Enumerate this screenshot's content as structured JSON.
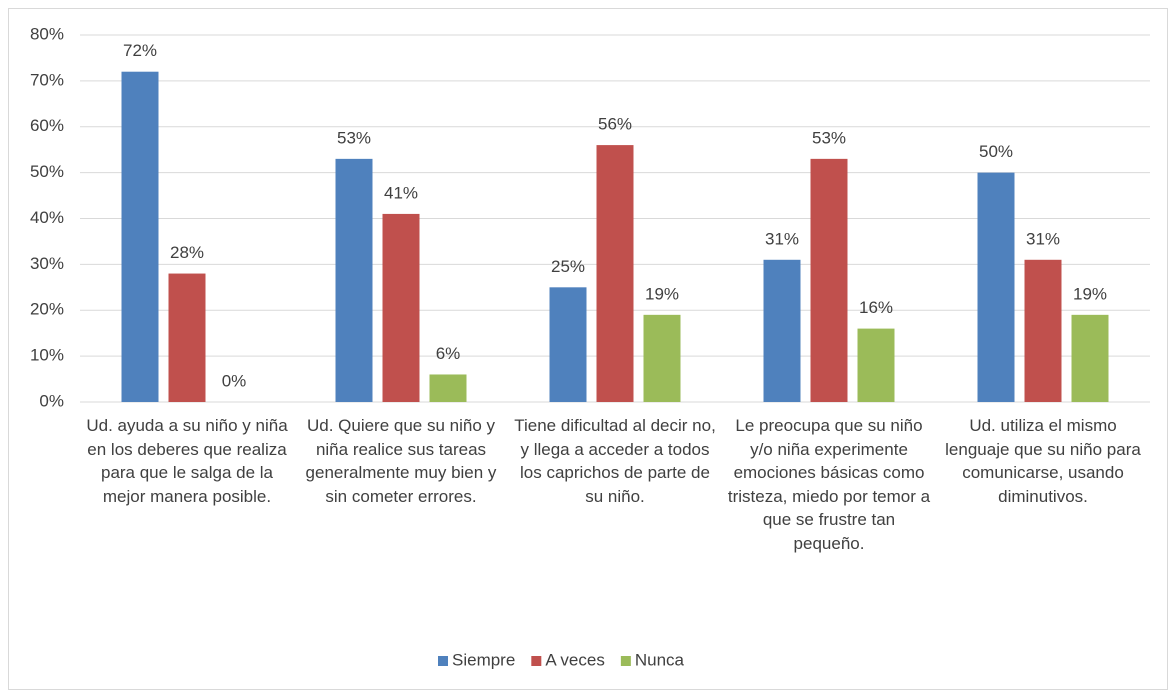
{
  "chart_data": {
    "type": "bar",
    "categories": [
      "Ud. ayuda a su niño y niña en los deberes que realiza para que le salga de la mejor manera posible.",
      "Ud. Quiere que su niño y niña realice sus tareas generalmente muy bien y sin cometer errores.",
      "Tiene dificultad al decir no, y llega a acceder a todos los caprichos de parte de su niño.",
      "Le preocupa que su niño y/o niña experimente emociones básicas como tristeza, miedo por temor a que se frustre tan pequeño.",
      "Ud. utiliza el mismo lenguaje que su niño para comunicarse, usando diminutivos."
    ],
    "series": [
      {
        "name": "Siempre",
        "color": "#4f81bd",
        "values": [
          72,
          53,
          25,
          31,
          50
        ],
        "value_labels": [
          "72%",
          "53%",
          "25%",
          "31%",
          "50%"
        ]
      },
      {
        "name": "A veces",
        "color": "#c0504d",
        "values": [
          28,
          41,
          56,
          53,
          31
        ],
        "value_labels": [
          "28%",
          "41%",
          "56%",
          "53%",
          "31%"
        ]
      },
      {
        "name": "Nunca",
        "color": "#9bbb59",
        "values": [
          0,
          6,
          19,
          16,
          19
        ],
        "value_labels": [
          "0%",
          "6%",
          "19%",
          "16%",
          "19%"
        ]
      }
    ],
    "ylim": [
      0,
      80
    ],
    "yticks": [
      {
        "value": 0,
        "label": "0%"
      },
      {
        "value": 10,
        "label": "10%"
      },
      {
        "value": 20,
        "label": "20%"
      },
      {
        "value": 30,
        "label": "30%"
      },
      {
        "value": 40,
        "label": "40%"
      },
      {
        "value": 50,
        "label": "50%"
      },
      {
        "value": 60,
        "label": "60%"
      },
      {
        "value": 70,
        "label": "70%"
      },
      {
        "value": 80,
        "label": "80%"
      }
    ],
    "grid": true,
    "legend": "bottom"
  }
}
